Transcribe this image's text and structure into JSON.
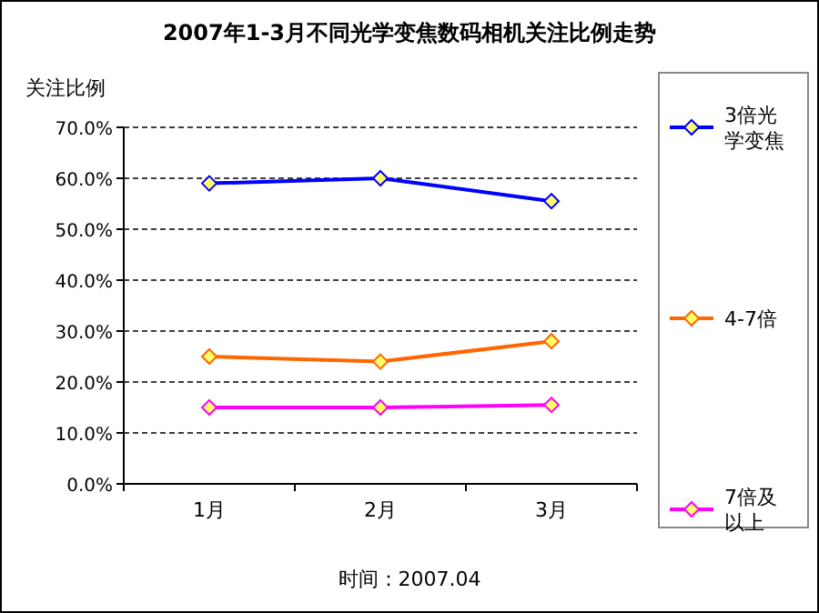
{
  "chart_data": {
    "type": "line",
    "title": "2007年1-3月不同光学变焦数码相机关注比例走势",
    "ylabel": "关注比例",
    "categories": [
      "1月",
      "2月",
      "3月"
    ],
    "series": [
      {
        "name": "3倍光学变焦",
        "color": "#0000ff",
        "values": [
          59,
          60,
          55.5
        ]
      },
      {
        "name": "4-7倍",
        "color": "#ff6600",
        "values": [
          25,
          24,
          28
        ]
      },
      {
        "name": "7倍及以上",
        "color": "#ff00ff",
        "values": [
          15,
          15,
          15.5
        ]
      }
    ],
    "ylim": [
      0,
      70
    ],
    "yticks": [
      {
        "value": 0,
        "label": "0.0%"
      },
      {
        "value": 10,
        "label": "10.0%"
      },
      {
        "value": 20,
        "label": "20.0%"
      },
      {
        "value": 30,
        "label": "30.0%"
      },
      {
        "value": 40,
        "label": "40.0%"
      },
      {
        "value": 50,
        "label": "50.0%"
      },
      {
        "value": 60,
        "label": "60.0%"
      },
      {
        "value": 70,
        "label": "70.0%"
      }
    ],
    "grid": "y",
    "legend": "right",
    "marker": "diamond",
    "line_style": "solid",
    "annotations": [
      "时间：2007.04"
    ]
  }
}
